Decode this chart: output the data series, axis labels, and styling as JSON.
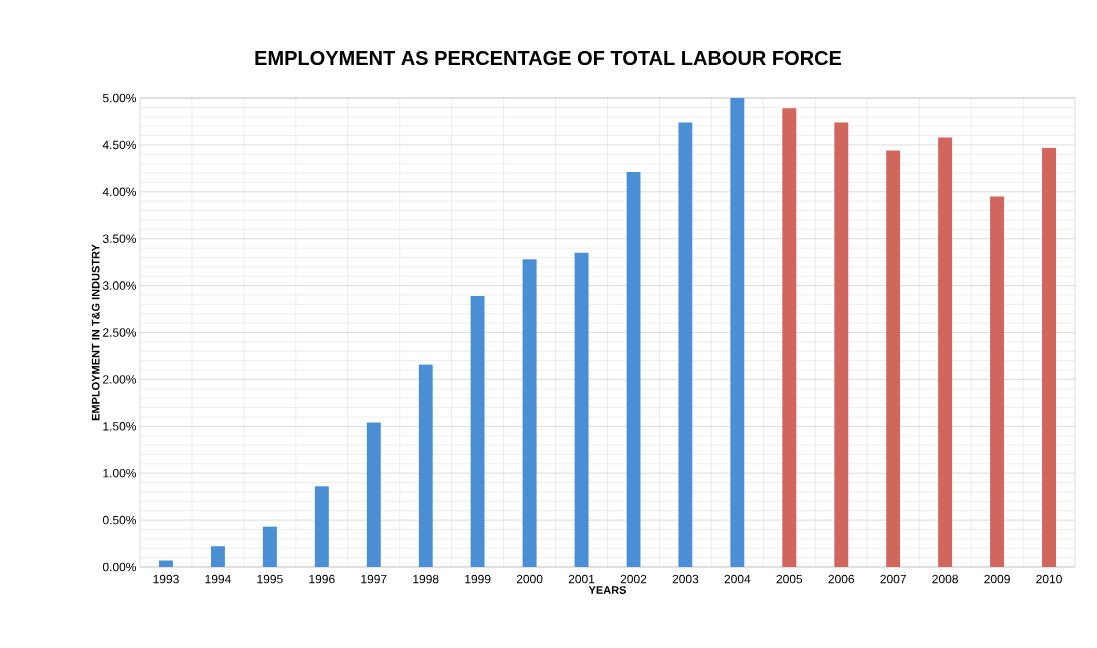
{
  "chart_data": {
    "type": "bar",
    "title": "EMPLOYMENT AS PERCENTAGE OF TOTAL LABOUR FORCE",
    "xlabel": "YEARS",
    "ylabel": "EMPLOYMENT IN T&G INDUSTRY",
    "categories": [
      "1993",
      "1994",
      "1995",
      "1996",
      "1997",
      "1998",
      "1999",
      "2000",
      "2001",
      "2002",
      "2003",
      "2004",
      "2005",
      "2006",
      "2007",
      "2008",
      "2009",
      "2010"
    ],
    "values": [
      0.07,
      0.22,
      0.43,
      0.86,
      1.54,
      2.16,
      2.89,
      3.28,
      3.35,
      4.21,
      4.74,
      5.0,
      4.89,
      4.74,
      4.44,
      4.58,
      3.95,
      4.47
    ],
    "colors": [
      "#4a8fd6",
      "#4a8fd6",
      "#4a8fd6",
      "#4a8fd6",
      "#4a8fd6",
      "#4a8fd6",
      "#4a8fd6",
      "#4a8fd6",
      "#4a8fd6",
      "#4a8fd6",
      "#4a8fd6",
      "#4a8fd6",
      "#d0665c",
      "#d0665c",
      "#d0665c",
      "#d0665c",
      "#d0665c",
      "#d0665c"
    ],
    "ylim": [
      0,
      5
    ],
    "yticks": [
      {
        "value": 0,
        "label": "0.00%"
      },
      {
        "value": 0.5,
        "label": "0.50%"
      },
      {
        "value": 1,
        "label": "1.00%"
      },
      {
        "value": 1.5,
        "label": "1.50%"
      },
      {
        "value": 2,
        "label": "2.00%"
      },
      {
        "value": 2.5,
        "label": "2.50%"
      },
      {
        "value": 3,
        "label": "3.00%"
      },
      {
        "value": 3.5,
        "label": "3.50%"
      },
      {
        "value": 4,
        "label": "4.00%"
      },
      {
        "value": 4.5,
        "label": "4.50%"
      },
      {
        "value": 5,
        "label": "5.00%"
      }
    ],
    "grid": true
  }
}
